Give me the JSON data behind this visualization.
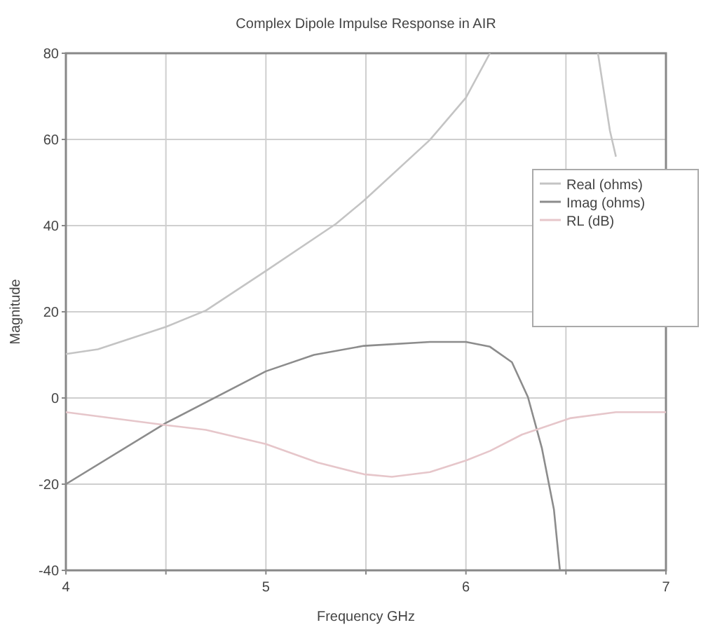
{
  "chart_data": {
    "type": "line",
    "title": "Complex Dipole Impulse Response in AIR",
    "xlabel": "Frequency GHz",
    "ylabel": "Magnitude",
    "xlim": [
      4,
      7
    ],
    "ylim": [
      -40,
      80
    ],
    "xticks": [
      4,
      {
        "value": 4.5,
        "label": null
      },
      5,
      {
        "value": 5.5,
        "label": null
      },
      6,
      {
        "value": 6.5,
        "label": null
      },
      7
    ],
    "yticks": [
      -40,
      -20,
      0,
      20,
      40,
      60,
      80
    ],
    "grid": true,
    "legend": "right",
    "series": [
      {
        "name": "Real (ohms)",
        "color": "#c4c4c4",
        "x": [
          4.0,
          4.16,
          4.5,
          4.7,
          5.0,
          5.35,
          5.49,
          5.82,
          6.0,
          6.12,
          6.4,
          6.66,
          6.72,
          6.75
        ],
        "values": [
          10.2,
          11.3,
          16.5,
          20.3,
          29.5,
          40.4,
          45.8,
          59.9,
          69.7,
          80,
          null,
          80,
          62,
          56
        ]
      },
      {
        "name": "Imag (ohms)",
        "color": "#8c8c8c",
        "x": [
          4.0,
          4.5,
          5.0,
          5.24,
          5.49,
          5.82,
          6.0,
          6.12,
          6.23,
          6.31,
          6.38,
          6.44,
          6.47
        ],
        "values": [
          -20,
          -5.8,
          6.2,
          10,
          12.1,
          13,
          13,
          11.9,
          8.3,
          0.2,
          -11.7,
          -25.9,
          -40
        ]
      },
      {
        "name": "RL (dB)",
        "color": "#e6c6ca",
        "x": [
          4.0,
          4.5,
          4.7,
          5.0,
          5.26,
          5.49,
          5.63,
          5.82,
          6.0,
          6.12,
          6.28,
          6.52,
          6.75,
          7.0
        ],
        "values": [
          -3.3,
          -6.3,
          -7.4,
          -10.7,
          -15,
          -17.7,
          -18.3,
          -17.2,
          -14.5,
          -12.3,
          -8.5,
          -4.7,
          -3.3,
          -3.3
        ]
      }
    ]
  }
}
